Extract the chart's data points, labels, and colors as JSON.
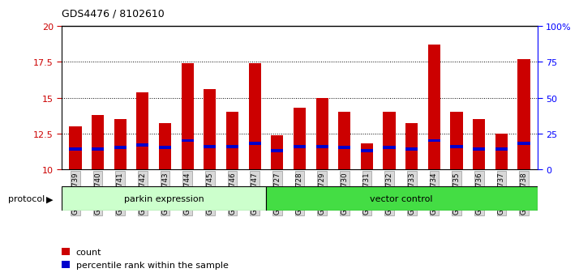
{
  "title": "GDS4476 / 8102610",
  "samples": [
    "GSM729739",
    "GSM729740",
    "GSM729741",
    "GSM729742",
    "GSM729743",
    "GSM729744",
    "GSM729745",
    "GSM729746",
    "GSM729747",
    "GSM729727",
    "GSM729728",
    "GSM729729",
    "GSM729730",
    "GSM729731",
    "GSM729732",
    "GSM729733",
    "GSM729734",
    "GSM729735",
    "GSM729736",
    "GSM729737",
    "GSM729738"
  ],
  "count_values": [
    13.0,
    13.8,
    13.5,
    15.4,
    13.2,
    17.4,
    15.6,
    14.0,
    17.4,
    12.4,
    14.3,
    15.0,
    14.0,
    11.8,
    14.0,
    13.2,
    18.7,
    14.0,
    13.5,
    12.5,
    17.7
  ],
  "percentile_values": [
    11.3,
    11.3,
    11.4,
    11.6,
    11.4,
    11.9,
    11.5,
    11.5,
    11.7,
    11.2,
    11.5,
    11.5,
    11.4,
    11.2,
    11.4,
    11.3,
    11.9,
    11.5,
    11.3,
    11.3,
    11.7
  ],
  "percentile_heights": [
    0.22,
    0.22,
    0.22,
    0.22,
    0.22,
    0.22,
    0.22,
    0.22,
    0.22,
    0.22,
    0.22,
    0.22,
    0.22,
    0.22,
    0.22,
    0.22,
    0.22,
    0.22,
    0.22,
    0.22,
    0.22
  ],
  "bar_color": "#cc0000",
  "percentile_color": "#0000cc",
  "ylim": [
    10,
    20
  ],
  "yticks": [
    10,
    12.5,
    15,
    17.5,
    20
  ],
  "ytick_labels": [
    "10",
    "12.5",
    "15",
    "17.5",
    "20"
  ],
  "right_yticks": [
    0,
    25,
    50,
    75,
    100
  ],
  "right_ytick_labels": [
    "0",
    "25",
    "50",
    "75",
    "100%"
  ],
  "groups": [
    {
      "label": "parkin expression",
      "start": 0,
      "end": 9,
      "color": "#ccffcc"
    },
    {
      "label": "vector control",
      "start": 9,
      "end": 21,
      "color": "#44dd44"
    }
  ],
  "protocol_label": "protocol",
  "legend_count": "count",
  "legend_percentile": "percentile rank within the sample",
  "bar_width": 0.55,
  "grid_color": "black",
  "grid_linestyle": "dotted"
}
